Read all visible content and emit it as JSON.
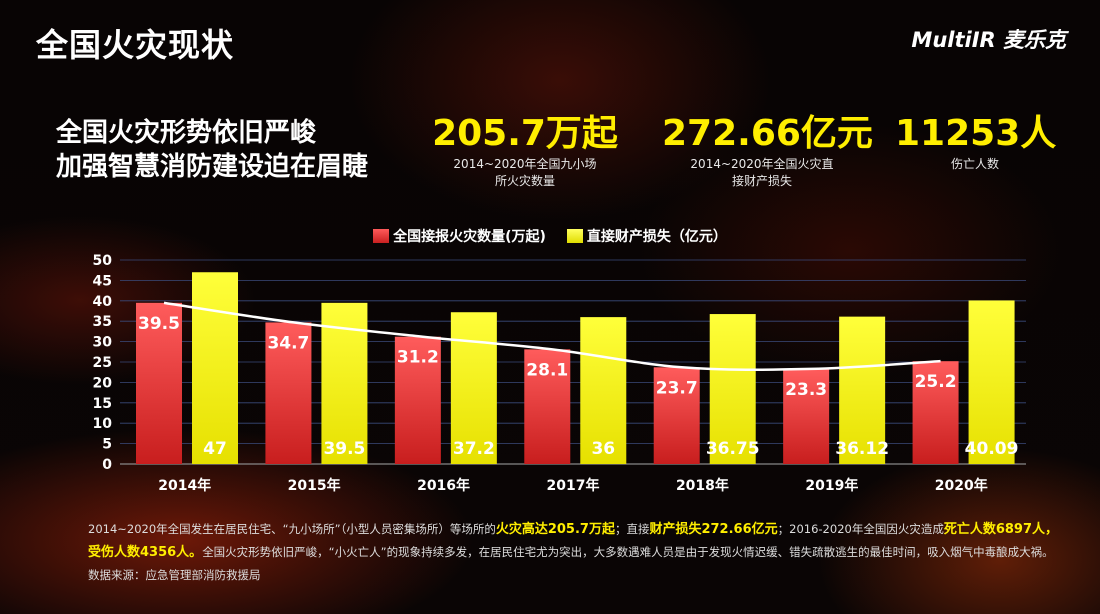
{
  "page": {
    "title": "全国火灾现状",
    "logo": "MultiIR 麦乐克",
    "headline_line1": "全国火灾形势依旧严峻",
    "headline_line2": "加强智慧消防建设迫在眉睫"
  },
  "stats": [
    {
      "value": "205.7万起",
      "label1": "2014~2020年全国九小场",
      "label2": "所火灾数量"
    },
    {
      "value": "272.66亿元",
      "label1": "2014~2020年全国火灾直",
      "label2": "接财产损失"
    },
    {
      "value": "11253人",
      "label1": "伤亡人数",
      "label2": ""
    }
  ],
  "chart_data": {
    "type": "bar",
    "categories": [
      "2014年",
      "2015年",
      "2016年",
      "2017年",
      "2018年",
      "2019年",
      "2020年"
    ],
    "series": [
      {
        "name": "全国接报火灾数量(万起)",
        "values": [
          39.5,
          34.7,
          31.2,
          28.1,
          23.7,
          23.3,
          25.2
        ],
        "color": "#e33b3b"
      },
      {
        "name": "直接财产损失（亿元）",
        "values": [
          47,
          39.5,
          37.2,
          36,
          36.75,
          36.12,
          40.09
        ],
        "color": "#ffff1a"
      }
    ],
    "trendline": {
      "series": "全国接报火灾数量(万起)",
      "type": "smooth",
      "color": "#ffffff"
    },
    "ylim": [
      0,
      50
    ],
    "yticks": [
      0,
      5,
      10,
      15,
      20,
      25,
      30,
      35,
      40,
      45,
      50
    ],
    "grid": true,
    "legend": "top-center"
  },
  "footer": {
    "t1": "2014~2020年全国发生在居民住宅、“九小场所”（小型人员密集场所）等场所的",
    "h1": "火灾高达205.7万起",
    "t2": "；直接",
    "h2": "财产损失272.66亿元",
    "t3": "；2016-2020年全国因火灾造成",
    "h3": "死亡人数6897人，受伤人数4356人。",
    "t4": "全国火灾形势依旧严峻，“小火亡人”的现象持续多发，在居民住宅尤为突出，大多数遇难人员是由于发现火情迟缓、错失疏散逃生的最佳时间，吸入烟气中毒酿成大祸。数据来源：应急管理部消防救援局"
  }
}
